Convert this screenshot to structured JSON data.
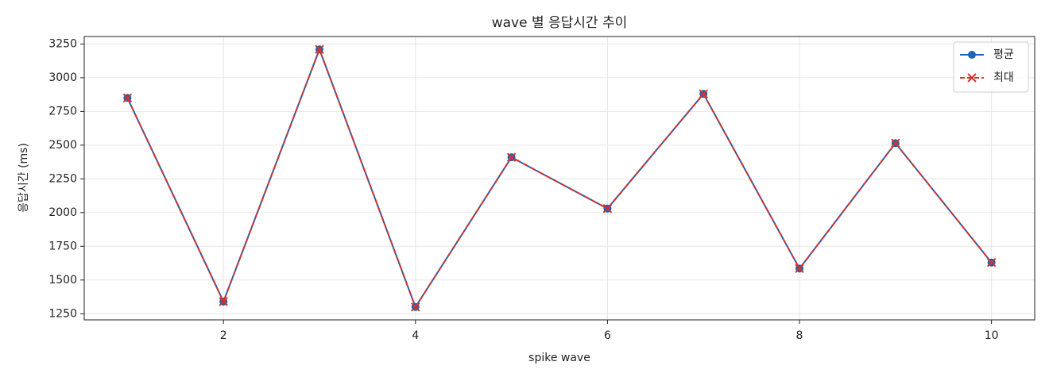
{
  "chart_data": {
    "type": "line",
    "title": "wave 별 응답시간 추이",
    "x_label": "spike wave",
    "y_label": "응답시간 (ms)",
    "x": [
      1,
      2,
      3,
      4,
      5,
      6,
      7,
      8,
      9,
      10
    ],
    "series": [
      {
        "name": "평균",
        "color": "#1f62b8",
        "marker": "o",
        "linestyle": "solid",
        "values": [
          2850,
          1340,
          3210,
          1300,
          2410,
          2030,
          2880,
          1585,
          2515,
          1630
        ]
      },
      {
        "name": "최대",
        "color": "#d0352f",
        "marker": "x",
        "linestyle": "dashed",
        "values": [
          2850,
          1340,
          3210,
          1300,
          2410,
          2030,
          2880,
          1585,
          2515,
          1630
        ]
      }
    ],
    "xlim": [
      0.55,
      10.45
    ],
    "ylim": [
      1204.5,
      3305.5
    ],
    "xticks": [
      2,
      4,
      6,
      8,
      10
    ],
    "yticks": [
      1250,
      1500,
      1750,
      2000,
      2250,
      2500,
      2750,
      3000,
      3250
    ],
    "grid": true,
    "legend": "upper right"
  }
}
